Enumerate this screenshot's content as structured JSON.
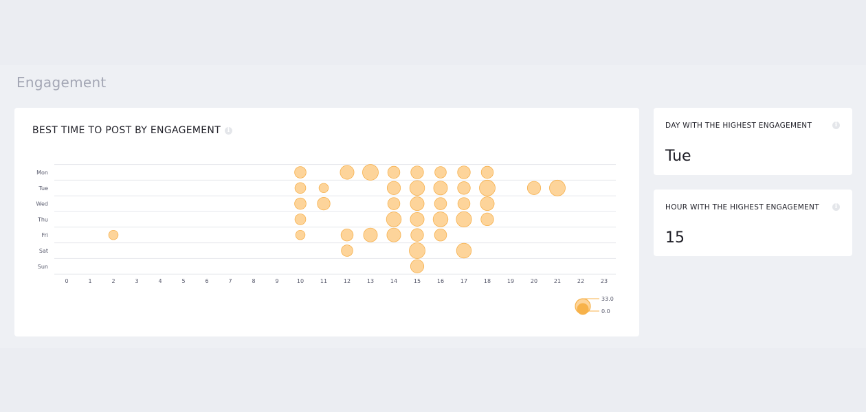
{
  "section_title": "Engagement",
  "chart_card": {
    "title": "BEST TIME TO POST BY ENGAGEMENT"
  },
  "stats": [
    {
      "label": "DAY WITH THE HIGHEST ENGAGEMENT",
      "value": "Tue"
    },
    {
      "label": "HOUR WITH THE HIGHEST ENGAGEMENT",
      "value": "15"
    }
  ],
  "colors": {
    "bubble_fill": "#fdd49a",
    "bubble_stroke": "#f6b04c",
    "legend_fill": "#f7b24a",
    "grid": "#e6e7ec",
    "info_icon": "#e4e6ea"
  },
  "chart_data": {
    "type": "scatter",
    "title": "BEST TIME TO POST BY ENGAGEMENT",
    "x_ticks": [
      "0",
      "1",
      "2",
      "3",
      "4",
      "5",
      "6",
      "7",
      "8",
      "9",
      "10",
      "11",
      "12",
      "13",
      "14",
      "15",
      "16",
      "17",
      "18",
      "19",
      "20",
      "21",
      "22",
      "23"
    ],
    "y_ticks": [
      "Mon",
      "Tue",
      "Wed",
      "Thu",
      "Fri",
      "Sat",
      "Sun"
    ],
    "size_legend": {
      "max": "33.0",
      "min": "0.0"
    },
    "max_value": 33,
    "grid": true,
    "legend_position": "bottom-right",
    "points": [
      {
        "day": "Mon",
        "hour": 10,
        "value": 9
      },
      {
        "day": "Mon",
        "hour": 12,
        "value": 13
      },
      {
        "day": "Mon",
        "hour": 13,
        "value": 17
      },
      {
        "day": "Mon",
        "hour": 14,
        "value": 10
      },
      {
        "day": "Mon",
        "hour": 15,
        "value": 11
      },
      {
        "day": "Mon",
        "hour": 16,
        "value": 9
      },
      {
        "day": "Mon",
        "hour": 17,
        "value": 11
      },
      {
        "day": "Mon",
        "hour": 18,
        "value": 10
      },
      {
        "day": "Tue",
        "hour": 10,
        "value": 8
      },
      {
        "day": "Tue",
        "hour": 11,
        "value": 6
      },
      {
        "day": "Tue",
        "hour": 14,
        "value": 12
      },
      {
        "day": "Tue",
        "hour": 15,
        "value": 15
      },
      {
        "day": "Tue",
        "hour": 16,
        "value": 13
      },
      {
        "day": "Tue",
        "hour": 17,
        "value": 11
      },
      {
        "day": "Tue",
        "hour": 18,
        "value": 17
      },
      {
        "day": "Tue",
        "hour": 20,
        "value": 12
      },
      {
        "day": "Tue",
        "hour": 21,
        "value": 18
      },
      {
        "day": "Wed",
        "hour": 10,
        "value": 9
      },
      {
        "day": "Wed",
        "hour": 11,
        "value": 11
      },
      {
        "day": "Wed",
        "hour": 14,
        "value": 10
      },
      {
        "day": "Wed",
        "hour": 15,
        "value": 13
      },
      {
        "day": "Wed",
        "hour": 16,
        "value": 10
      },
      {
        "day": "Wed",
        "hour": 17,
        "value": 10
      },
      {
        "day": "Wed",
        "hour": 18,
        "value": 13
      },
      {
        "day": "Thu",
        "hour": 10,
        "value": 8
      },
      {
        "day": "Thu",
        "hour": 14,
        "value": 15
      },
      {
        "day": "Thu",
        "hour": 15,
        "value": 13
      },
      {
        "day": "Thu",
        "hour": 16,
        "value": 15
      },
      {
        "day": "Thu",
        "hour": 17,
        "value": 16
      },
      {
        "day": "Thu",
        "hour": 18,
        "value": 11
      },
      {
        "day": "Fri",
        "hour": 2,
        "value": 6
      },
      {
        "day": "Fri",
        "hour": 10,
        "value": 6
      },
      {
        "day": "Fri",
        "hour": 12,
        "value": 10
      },
      {
        "day": "Fri",
        "hour": 13,
        "value": 13
      },
      {
        "day": "Fri",
        "hour": 14,
        "value": 13
      },
      {
        "day": "Fri",
        "hour": 15,
        "value": 11
      },
      {
        "day": "Fri",
        "hour": 16,
        "value": 10
      },
      {
        "day": "Sat",
        "hour": 12,
        "value": 9
      },
      {
        "day": "Sat",
        "hour": 15,
        "value": 17
      },
      {
        "day": "Sat",
        "hour": 17,
        "value": 15
      },
      {
        "day": "Sun",
        "hour": 15,
        "value": 12
      }
    ]
  }
}
